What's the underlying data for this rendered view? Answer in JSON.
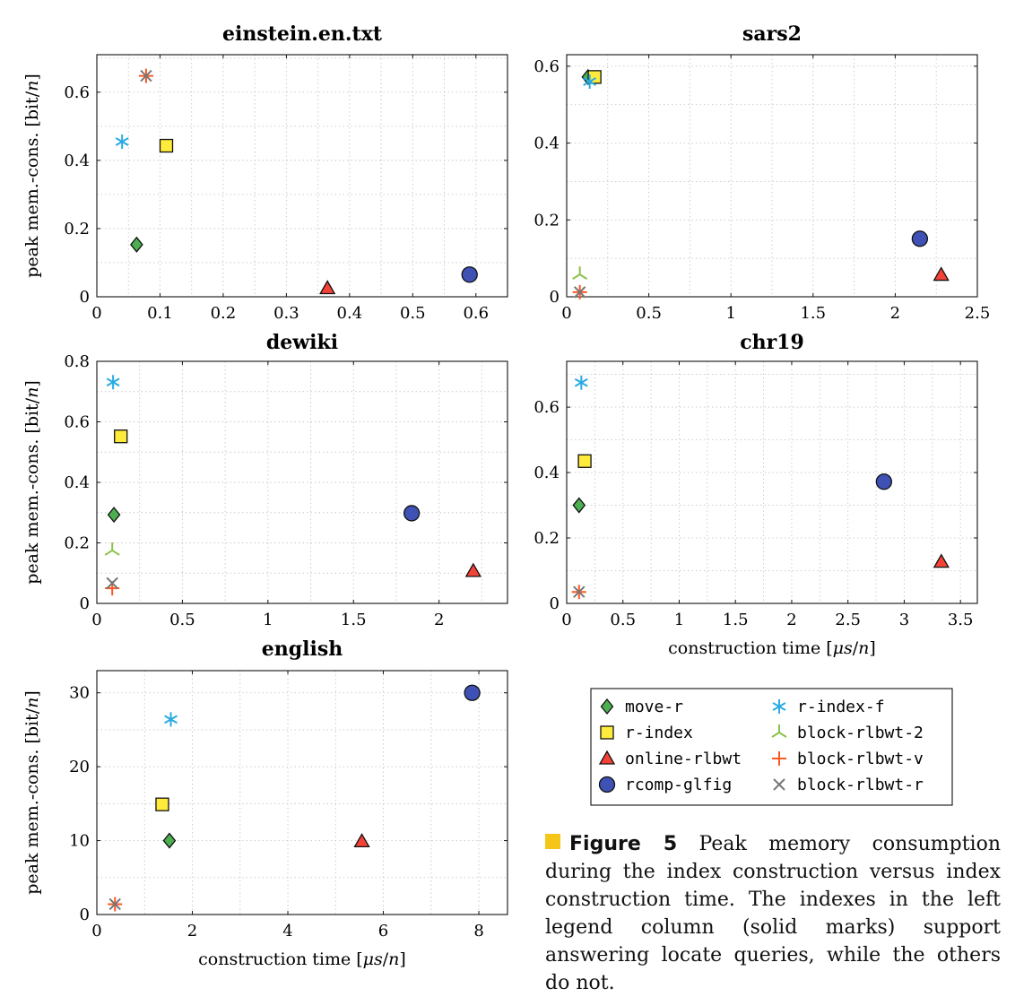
{
  "series_styles": {
    "move-r": {
      "marker": "diamond",
      "color": "#4caf50"
    },
    "r-index": {
      "marker": "square",
      "color": "#ffeb3b"
    },
    "online-rlbwt": {
      "marker": "triangle",
      "color": "#f44336"
    },
    "rcomp-glfig": {
      "marker": "circle",
      "color": "#3f51b5"
    },
    "r-index-f": {
      "marker": "asterisk",
      "color": "#29abe2"
    },
    "block-rlbwt-2": {
      "marker": "tri-down",
      "color": "#8bc34a"
    },
    "block-rlbwt-v": {
      "marker": "plus",
      "color": "#ff5722"
    },
    "block-rlbwt-r": {
      "marker": "cross",
      "color": "#777777"
    }
  },
  "legend": {
    "items": [
      "move-r",
      "r-index",
      "online-rlbwt",
      "rcomp-glfig",
      "r-index-f",
      "block-rlbwt-2",
      "block-rlbwt-v",
      "block-rlbwt-r"
    ]
  },
  "caption": {
    "label": "Figure 5",
    "text": "Peak memory consumption during the index construction versus index construction time. The indexes in the left legend column (solid marks) support answering locate queries, while the others do not.",
    "marker_color": "#f5c518"
  },
  "chart_data": [
    {
      "type": "scatter",
      "title": "einstein.en.txt",
      "xlabel": "",
      "ylabel": "peak mem.-cons. [bit/n]",
      "xlim": [
        0,
        0.65
      ],
      "ylim": [
        0,
        0.71
      ],
      "xticks": [
        0,
        0.1,
        0.2,
        0.3,
        0.4,
        0.5,
        0.6
      ],
      "xticklabels": [
        "0",
        "0.1",
        "0.2",
        "0.3",
        "0.4",
        "0.5",
        "0.6"
      ],
      "yticks": [
        0,
        0.2,
        0.4,
        0.6
      ],
      "yticklabels": [
        "0",
        "0.2",
        "0.4",
        "0.6"
      ],
      "grid": true,
      "series": [
        {
          "name": "move-r",
          "x": [
            0.063
          ],
          "y": [
            0.153
          ]
        },
        {
          "name": "r-index",
          "x": [
            0.11
          ],
          "y": [
            0.443
          ]
        },
        {
          "name": "online-rlbwt",
          "x": [
            0.365
          ],
          "y": [
            0.025
          ]
        },
        {
          "name": "rcomp-glfig",
          "x": [
            0.59
          ],
          "y": [
            0.065
          ]
        },
        {
          "name": "r-index-f",
          "x": [
            0.04
          ],
          "y": [
            0.455
          ]
        },
        {
          "name": "block-rlbwt-v",
          "x": [
            0.078
          ],
          "y": [
            0.648
          ]
        },
        {
          "name": "block-rlbwt-r",
          "x": [
            0.078
          ],
          "y": [
            0.648
          ]
        }
      ]
    },
    {
      "type": "scatter",
      "title": "sars2",
      "xlabel": "",
      "ylabel": "",
      "xlim": [
        0,
        2.5
      ],
      "ylim": [
        0,
        0.63
      ],
      "xticks": [
        0,
        0.5,
        1,
        1.5,
        2,
        2.5
      ],
      "xticklabels": [
        "0",
        "0.5",
        "1",
        "1.5",
        "2",
        "2.5"
      ],
      "yticks": [
        0,
        0.2,
        0.4,
        0.6
      ],
      "yticklabels": [
        "0",
        "0.2",
        "0.4",
        "0.6"
      ],
      "grid": true,
      "series": [
        {
          "name": "move-r",
          "x": [
            0.13
          ],
          "y": [
            0.572
          ]
        },
        {
          "name": "r-index",
          "x": [
            0.17
          ],
          "y": [
            0.572
          ]
        },
        {
          "name": "online-rlbwt",
          "x": [
            2.28
          ],
          "y": [
            0.057
          ]
        },
        {
          "name": "rcomp-glfig",
          "x": [
            2.15
          ],
          "y": [
            0.151
          ]
        },
        {
          "name": "r-index-f",
          "x": [
            0.14
          ],
          "y": [
            0.56
          ]
        },
        {
          "name": "block-rlbwt-2",
          "x": [
            0.08
          ],
          "y": [
            0.058
          ]
        },
        {
          "name": "block-rlbwt-v",
          "x": [
            0.08
          ],
          "y": [
            0.012
          ]
        },
        {
          "name": "block-rlbwt-r",
          "x": [
            0.08
          ],
          "y": [
            0.012
          ]
        }
      ]
    },
    {
      "type": "scatter",
      "title": "dewiki",
      "xlabel": "",
      "ylabel": "peak mem.-cons. [bit/n]",
      "xlim": [
        0,
        2.4
      ],
      "ylim": [
        0,
        0.8
      ],
      "xticks": [
        0,
        0.5,
        1,
        1.5,
        2
      ],
      "xticklabels": [
        "0",
        "0.5",
        "1",
        "1.5",
        "2"
      ],
      "yticks": [
        0,
        0.2,
        0.4,
        0.6,
        0.8
      ],
      "yticklabels": [
        "0",
        "0.2",
        "0.4",
        "0.6",
        "0.8"
      ],
      "grid": true,
      "series": [
        {
          "name": "move-r",
          "x": [
            0.1
          ],
          "y": [
            0.293
          ]
        },
        {
          "name": "r-index",
          "x": [
            0.14
          ],
          "y": [
            0.552
          ]
        },
        {
          "name": "online-rlbwt",
          "x": [
            2.2
          ],
          "y": [
            0.107
          ]
        },
        {
          "name": "rcomp-glfig",
          "x": [
            1.84
          ],
          "y": [
            0.298
          ]
        },
        {
          "name": "r-index-f",
          "x": [
            0.095
          ],
          "y": [
            0.731
          ]
        },
        {
          "name": "block-rlbwt-2",
          "x": [
            0.09
          ],
          "y": [
            0.175
          ]
        },
        {
          "name": "block-rlbwt-v",
          "x": [
            0.09
          ],
          "y": [
            0.05
          ]
        },
        {
          "name": "block-rlbwt-r",
          "x": [
            0.09
          ],
          "y": [
            0.067
          ]
        }
      ]
    },
    {
      "type": "scatter",
      "title": "chr19",
      "xlabel": "construction time [μs/n]",
      "ylabel": "",
      "xlim": [
        0,
        3.65
      ],
      "ylim": [
        0,
        0.74
      ],
      "xticks": [
        0,
        0.5,
        1,
        1.5,
        2,
        2.5,
        3,
        3.5
      ],
      "xticklabels": [
        "0",
        "0.5",
        "1",
        "1.5",
        "2",
        "2.5",
        "3",
        "3.5"
      ],
      "yticks": [
        0,
        0.2,
        0.4,
        0.6
      ],
      "yticklabels": [
        "0",
        "0.2",
        "0.4",
        "0.6"
      ],
      "grid": true,
      "series": [
        {
          "name": "move-r",
          "x": [
            0.11
          ],
          "y": [
            0.3
          ]
        },
        {
          "name": "r-index",
          "x": [
            0.16
          ],
          "y": [
            0.435
          ]
        },
        {
          "name": "online-rlbwt",
          "x": [
            3.33
          ],
          "y": [
            0.127
          ]
        },
        {
          "name": "rcomp-glfig",
          "x": [
            2.82
          ],
          "y": [
            0.372
          ]
        },
        {
          "name": "r-index-f",
          "x": [
            0.13
          ],
          "y": [
            0.675
          ]
        },
        {
          "name": "block-rlbwt-v",
          "x": [
            0.11
          ],
          "y": [
            0.035
          ]
        },
        {
          "name": "block-rlbwt-r",
          "x": [
            0.11
          ],
          "y": [
            0.035
          ]
        }
      ]
    },
    {
      "type": "scatter",
      "title": "english",
      "xlabel": "construction time [μs/n]",
      "ylabel": "peak mem.-cons. [bit/n]",
      "xlim": [
        0,
        8.6
      ],
      "ylim": [
        0,
        33
      ],
      "xticks": [
        0,
        2,
        4,
        6,
        8
      ],
      "xticklabels": [
        "0",
        "2",
        "4",
        "6",
        "8"
      ],
      "yticks": [
        0,
        10,
        20,
        30
      ],
      "yticklabels": [
        "0",
        "10",
        "20",
        "30"
      ],
      "grid": true,
      "series": [
        {
          "name": "move-r",
          "x": [
            1.52
          ],
          "y": [
            10
          ]
        },
        {
          "name": "r-index",
          "x": [
            1.37
          ],
          "y": [
            14.9
          ]
        },
        {
          "name": "online-rlbwt",
          "x": [
            5.55
          ],
          "y": [
            9.9
          ]
        },
        {
          "name": "rcomp-glfig",
          "x": [
            7.86
          ],
          "y": [
            30
          ]
        },
        {
          "name": "r-index-f",
          "x": [
            1.55
          ],
          "y": [
            26.4
          ]
        },
        {
          "name": "block-rlbwt-v",
          "x": [
            0.38
          ],
          "y": [
            1.4
          ]
        },
        {
          "name": "block-rlbwt-r",
          "x": [
            0.38
          ],
          "y": [
            1.4
          ]
        }
      ]
    }
  ]
}
